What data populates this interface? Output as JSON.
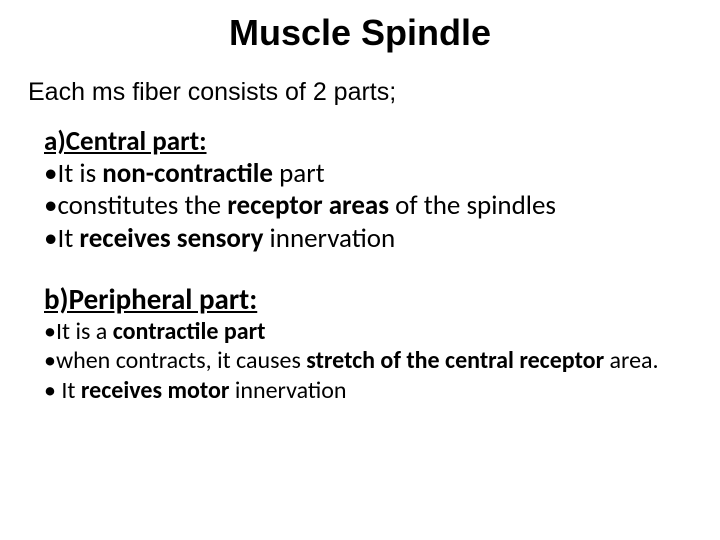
{
  "title": "Muscle Spindle",
  "intro": "Each ms fiber consists of 2 parts;",
  "sectionA": {
    "heading": "a)Central part:",
    "bullet1_pre": "•It is ",
    "bullet1_bold": "non-contractile",
    "bullet1_post": " part",
    "bullet2_pre": "•constitutes the ",
    "bullet2_bold": "receptor areas",
    "bullet2_post": " of the spindles",
    "bullet3_pre": "•It ",
    "bullet3_bold": "receives sensory",
    "bullet3_post": " innervation"
  },
  "sectionB": {
    "heading": "b)Peripheral part:",
    "bullet1_pre": "•It is a ",
    "bullet1_bold": "contractile part",
    "bullet2_pre": "•when contracts, it causes ",
    "bullet2_bold": "stretch of the central receptor",
    "bullet2_post": " area.",
    "bullet3_pre": "• It ",
    "bullet3_bold": "receives motor",
    "bullet3_post": " innervation"
  },
  "colors": {
    "background": "#ffffff",
    "text": "#000000"
  },
  "fonts": {
    "title_size": 36,
    "intro_size": 25,
    "section_a_size": 27,
    "heading_b_size": 29,
    "section_b_size": 24
  }
}
